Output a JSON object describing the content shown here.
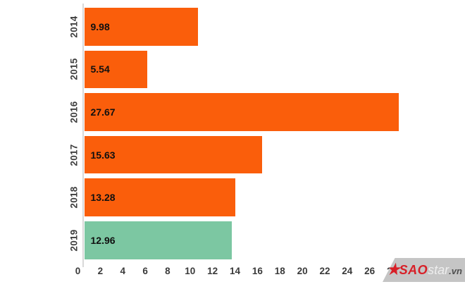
{
  "chart_data": {
    "type": "bar",
    "orientation": "horizontal",
    "title": "",
    "xlabel": "",
    "ylabel": "",
    "categories": [
      "2014",
      "2015",
      "2016",
      "2017",
      "2018",
      "2019"
    ],
    "values": [
      9.98,
      5.54,
      27.67,
      15.63,
      13.28,
      12.96
    ],
    "value_labels": [
      "9.98",
      "5.54",
      "27.67",
      "15.63",
      "13.28",
      "12.96"
    ],
    "bar_colors": [
      "#FA5E0B",
      "#FA5E0B",
      "#FA5E0B",
      "#FA5E0B",
      "#FA5E0B",
      "#7CC7A2"
    ],
    "xlim": [
      0,
      28
    ],
    "x_ticks": [
      0,
      2,
      4,
      6,
      8,
      10,
      12,
      14,
      16,
      18,
      20,
      22,
      24,
      26,
      28
    ],
    "grid": false,
    "legend_position": "none"
  },
  "colors": {
    "orange": "#FA5E0B",
    "green": "#7CC7A2",
    "axis_line": "#d9d9d9",
    "tick_text": "#3a3a3a",
    "value_text": "#101010"
  },
  "watermark": {
    "star_icon": "★",
    "brand_sao": "SAO",
    "brand_star": "star",
    "brand_vn": ".vn",
    "bg_color": "#c5c5c5",
    "red": "#D81F27"
  }
}
